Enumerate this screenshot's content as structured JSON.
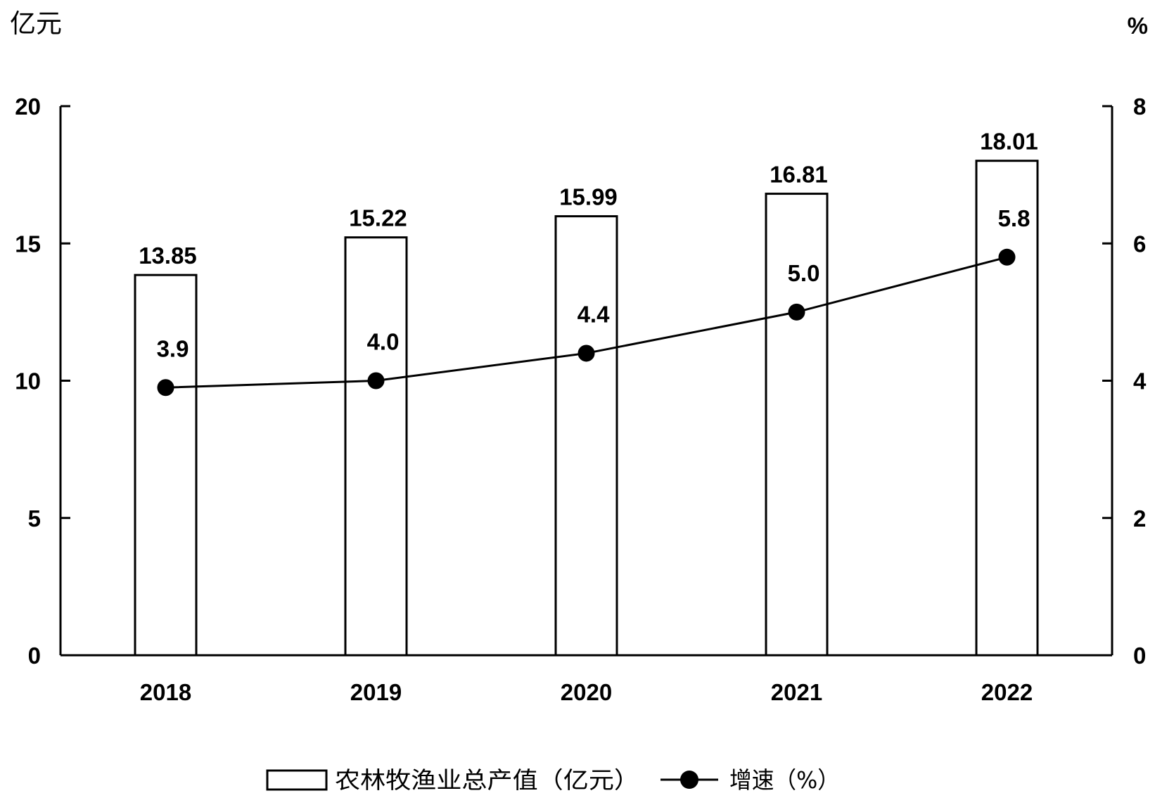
{
  "chart_data": {
    "type": "bar",
    "categories": [
      "2018",
      "2019",
      "2020",
      "2021",
      "2022"
    ],
    "series": [
      {
        "name": "农林牧渔业总产值（亿元）",
        "type": "bar",
        "axis": "left",
        "values": [
          13.85,
          15.22,
          15.99,
          16.81,
          18.01
        ],
        "labels": [
          "13.85",
          "15.22",
          "15.99",
          "16.81",
          "18.01"
        ]
      },
      {
        "name": "增速（%）",
        "type": "line",
        "axis": "right",
        "values": [
          3.9,
          4.0,
          4.4,
          5.0,
          5.8
        ],
        "labels": [
          "3.9",
          "4.0",
          "4.4",
          "5.0",
          "5.8"
        ]
      }
    ],
    "left_axis": {
      "label": "亿元",
      "ylim": [
        0,
        20
      ],
      "ticks": [
        0,
        5,
        10,
        15,
        20
      ]
    },
    "right_axis": {
      "label": "%",
      "ylim": [
        0,
        8
      ],
      "ticks": [
        0,
        2,
        4,
        6,
        8
      ]
    },
    "legend": {
      "placement": "bottom"
    },
    "grid": false,
    "colors": {
      "bar_fill": "#ffffff",
      "stroke": "#000000",
      "line": "#000000"
    }
  }
}
